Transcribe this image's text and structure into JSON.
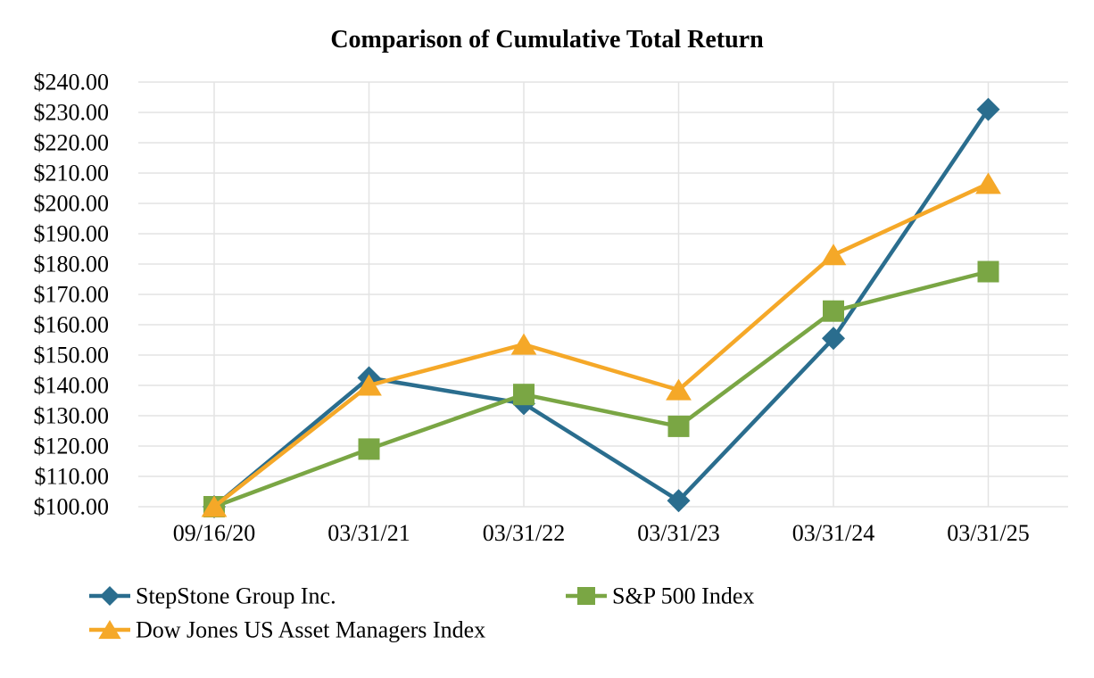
{
  "page": {
    "background": "#ffffff",
    "text_color": "#000000"
  },
  "chart_data": {
    "type": "line",
    "title": "Comparison of Cumulative Total Return",
    "categories": [
      "09/16/20",
      "03/31/21",
      "03/31/22",
      "03/31/23",
      "03/31/24",
      "03/31/25"
    ],
    "series": [
      {
        "name": "StepStone Group Inc.",
        "marker": "diamond",
        "color": "#2A6D8E",
        "values": [
          100.0,
          142.5,
          134.0,
          102.0,
          155.5,
          231.0
        ]
      },
      {
        "name": "S&P 500 Index",
        "marker": "square",
        "color": "#7AA644",
        "values": [
          100.0,
          119.0,
          137.0,
          126.5,
          164.5,
          177.5
        ]
      },
      {
        "name": "Dow Jones US Asset Managers Index",
        "marker": "triangle",
        "color": "#F5A828",
        "values": [
          100.0,
          140.0,
          153.5,
          138.5,
          183.0,
          206.5
        ]
      }
    ],
    "y_axis": {
      "min": 100,
      "max": 240,
      "step": 10,
      "tick_labels": [
        "$240.00",
        "$230.00",
        "$220.00",
        "$210.00",
        "$200.00",
        "$190.00",
        "$180.00",
        "$170.00",
        "$160.00",
        "$150.00",
        "$140.00",
        "$130.00",
        "$120.00",
        "$110.00",
        "$100.00"
      ]
    },
    "x_axis": {
      "tick_labels": [
        "09/16/20",
        "03/31/21",
        "03/31/22",
        "03/31/23",
        "03/31/24",
        "03/31/25"
      ]
    },
    "grid": {
      "horizontal": true,
      "vertical": true,
      "color": "#E3E3E3"
    },
    "legend_position": "bottom-left"
  }
}
